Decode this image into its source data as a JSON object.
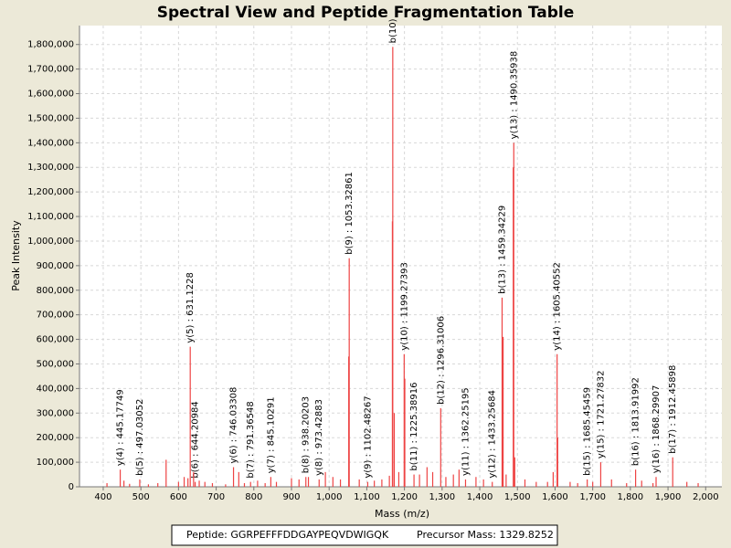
{
  "chart_data": {
    "type": "spectrum",
    "title": "Spectral View and Peptide Fragmentation Table",
    "x_label": "Mass (m/z)",
    "y_label": "Peak Intensity",
    "xlim": [
      337,
      2043
    ],
    "ylim": [
      0,
      1877000
    ],
    "xticks": [
      400,
      500,
      600,
      700,
      800,
      900,
      {
        "value": 1000,
        "label": "1,000"
      },
      {
        "value": 1100,
        "label": "1,100"
      },
      {
        "value": 1200,
        "label": "1,200"
      },
      {
        "value": 1300,
        "label": "1,300"
      },
      {
        "value": 1400,
        "label": "1,400"
      },
      {
        "value": 1500,
        "label": "1,500"
      },
      {
        "value": 1600,
        "label": "1,600"
      },
      {
        "value": 1700,
        "label": "1,700"
      },
      {
        "value": 1800,
        "label": "1,800"
      },
      {
        "value": 1900,
        "label": "1,900"
      },
      {
        "value": 2000,
        "label": "2,000"
      }
    ],
    "yticks": [
      0,
      {
        "value": 100000,
        "label": "100,000"
      },
      {
        "value": 200000,
        "label": "200,000"
      },
      {
        "value": 300000,
        "label": "300,000"
      },
      {
        "value": 400000,
        "label": "400,000"
      },
      {
        "value": 500000,
        "label": "500,000"
      },
      {
        "value": 600000,
        "label": "600,000"
      },
      {
        "value": 700000,
        "label": "700,000"
      },
      {
        "value": 800000,
        "label": "800,000"
      },
      {
        "value": 900000,
        "label": "900,000"
      },
      {
        "value": 1000000,
        "label": "1,000,000"
      },
      {
        "value": 1100000,
        "label": "1,100,000"
      },
      {
        "value": 1200000,
        "label": "1,200,000"
      },
      {
        "value": 1300000,
        "label": "1,300,000"
      },
      {
        "value": 1400000,
        "label": "1,400,000"
      },
      {
        "value": 1500000,
        "label": "1,500,000"
      },
      {
        "value": 1600000,
        "label": "1,600,000"
      },
      {
        "value": 1700000,
        "label": "1,700,000"
      },
      {
        "value": 1800000,
        "label": "1,800,000"
      }
    ],
    "grid": true,
    "color": "#ee4444",
    "peaks": {
      "x": [
        445.17749,
        497.03052,
        631.1228,
        644.20984,
        746.03308,
        791.36548,
        845.10291,
        938.20203,
        973.42883,
        1053.32861,
        1102.48267,
        1169,
        1199.27393,
        1225.38916,
        1296.31006,
        1362.25195,
        1433.25684,
        1459.34229,
        1490.35938,
        1605.40552,
        1685.45459,
        1721.27832,
        1813.91992,
        1868.29907,
        1912.45898,
        410,
        455,
        470,
        520,
        545,
        567,
        600,
        615,
        625,
        640,
        655,
        670,
        690,
        725,
        760,
        775,
        810,
        830,
        860,
        900,
        920,
        945,
        990,
        1010,
        1030,
        1052,
        1080,
        1120,
        1140,
        1160,
        1168,
        1173,
        1185,
        1201,
        1240,
        1260,
        1275,
        1310,
        1330,
        1345,
        1390,
        1410,
        1462,
        1470,
        1489,
        1493,
        1520,
        1550,
        1580,
        1595,
        1607,
        1640,
        1660,
        1700,
        1750,
        1790,
        1830,
        1860,
        1950,
        1980
      ],
      "values": [
        70000,
        30000,
        570000,
        20000,
        80000,
        20000,
        40000,
        40000,
        30000,
        930000,
        20000,
        1790000,
        540000,
        50000,
        320000,
        30000,
        20000,
        770000,
        1400000,
        540000,
        30000,
        100000,
        70000,
        40000,
        120000,
        15000,
        25000,
        12000,
        10000,
        15000,
        110000,
        20000,
        40000,
        35000,
        60000,
        25000,
        20000,
        15000,
        10000,
        60000,
        15000,
        25000,
        15000,
        20000,
        35000,
        30000,
        40000,
        60000,
        40000,
        30000,
        530000,
        30000,
        25000,
        30000,
        45000,
        1080000,
        300000,
        60000,
        440000,
        50000,
        80000,
        60000,
        40000,
        50000,
        70000,
        40000,
        30000,
        610000,
        50000,
        1300000,
        120000,
        30000,
        20000,
        20000,
        60000,
        200000,
        20000,
        15000,
        20000,
        30000,
        15000,
        25000,
        15000,
        20000,
        15000
      ],
      "labels": [
        "y(4) : 445.17749",
        "b(5) : 497.03052",
        "y(5) : 631.1228",
        "b(6) : 644.20984",
        "y(6) : 746.03308",
        "b(7) : 791.36548",
        "y(7) : 845.10291",
        "b(8) : 938.20203",
        "y(8) : 973.42883",
        "b(9) : 1053.32861",
        "y(9) : 1102.48267",
        "b(10)",
        "y(10) : 1199.27393",
        "b(11) : 1225.38916",
        "b(12) : 1296.31006",
        "y(11) : 1362.25195",
        "y(12) : 1433.25684",
        "b(13) : 1459.34229",
        "y(13) : 1490.35938",
        "y(14) : 1605.40552",
        "b(15) : 1685.45459",
        "y(15) : 1721.27832",
        "b(16) : 1813.91992",
        "y(16) : 1868.29907",
        "b(17) : 1912.45898",
        null,
        null,
        null,
        null,
        null,
        null,
        null,
        null,
        null,
        null,
        null,
        null,
        null,
        null,
        null,
        null,
        null,
        null,
        null,
        null,
        null,
        null,
        null,
        null,
        null,
        null,
        null,
        null,
        null,
        null,
        null,
        null,
        null,
        null,
        null,
        null,
        null,
        null,
        null,
        null,
        null,
        null,
        null,
        null,
        null,
        null,
        null,
        null,
        null,
        null,
        null,
        null,
        null,
        null,
        null,
        null,
        null,
        null,
        null,
        null
      ]
    }
  },
  "footer": {
    "peptide": "Peptide: GGRPEFFFDDGAYPEQVDWIGQK",
    "precursor": "Precursor Mass: 1329.8252"
  }
}
